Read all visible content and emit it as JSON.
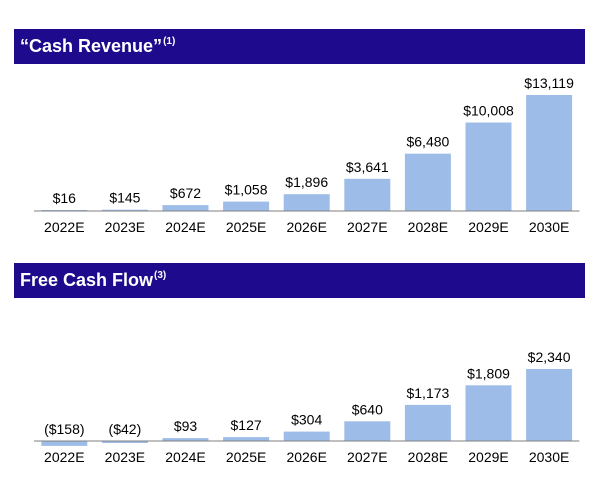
{
  "chart_data": [
    {
      "type": "bar",
      "title": "“Cash Revenue”",
      "title_note": "(1)",
      "categories": [
        "2022E",
        "2023E",
        "2024E",
        "2025E",
        "2026E",
        "2027E",
        "2028E",
        "2029E",
        "2030E"
      ],
      "values": [
        16,
        145,
        672,
        1058,
        1896,
        3641,
        6480,
        10008,
        13119
      ],
      "labels": [
        "$16",
        "$145",
        "$672",
        "$1,058",
        "$1,896",
        "$3,641",
        "$6,480",
        "$10,008",
        "$13,119"
      ],
      "bar_color": "#9dbde8",
      "axis_color": "#7f7f7f",
      "grid": false,
      "legend": "none"
    },
    {
      "type": "bar",
      "title": "Free Cash Flow",
      "title_note": "(3)",
      "categories": [
        "2022E",
        "2023E",
        "2024E",
        "2025E",
        "2026E",
        "2027E",
        "2028E",
        "2029E",
        "2030E"
      ],
      "values": [
        -158,
        -42,
        93,
        127,
        304,
        640,
        1173,
        1809,
        2340
      ],
      "labels": [
        "($158)",
        "($42)",
        "$93",
        "$127",
        "$304",
        "$640",
        "$1,173",
        "$1,809",
        "$2,340"
      ],
      "bar_color": "#9dbde8",
      "axis_color": "#7f7f7f",
      "grid": false,
      "legend": "none"
    }
  ],
  "colors": {
    "banner": "#1e0a8c",
    "banner_text": "#ffffff"
  }
}
